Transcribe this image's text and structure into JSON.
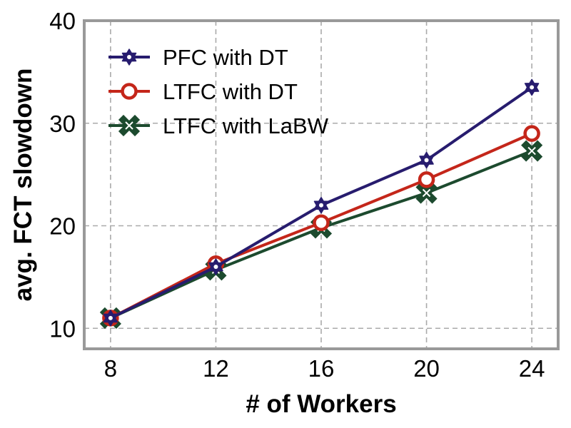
{
  "chart_data": {
    "type": "line",
    "xlabel": "# of Workers",
    "ylabel": "avg. FCT slowdown",
    "x": [
      8,
      12,
      16,
      20,
      24
    ],
    "xticks": [
      "8",
      "12",
      "16",
      "20",
      "24"
    ],
    "yticks": [
      "10",
      "20",
      "30",
      "40"
    ],
    "xlim": [
      7,
      25
    ],
    "ylim": [
      8,
      40
    ],
    "grid": true,
    "legend_position": "top-left",
    "series": [
      {
        "name": "PFC with DT",
        "values": [
          11.0,
          16.0,
          22.0,
          26.4,
          33.5
        ],
        "color": "#271c6e",
        "marker": "star"
      },
      {
        "name": "LTFC with DT",
        "values": [
          11.0,
          16.3,
          20.3,
          24.5,
          29.0
        ],
        "color": "#c4261a",
        "marker": "circle"
      },
      {
        "name": "LTFC with LaBW",
        "values": [
          11.0,
          15.7,
          19.8,
          23.2,
          27.3
        ],
        "color": "#1c4a2e",
        "marker": "x"
      }
    ]
  }
}
